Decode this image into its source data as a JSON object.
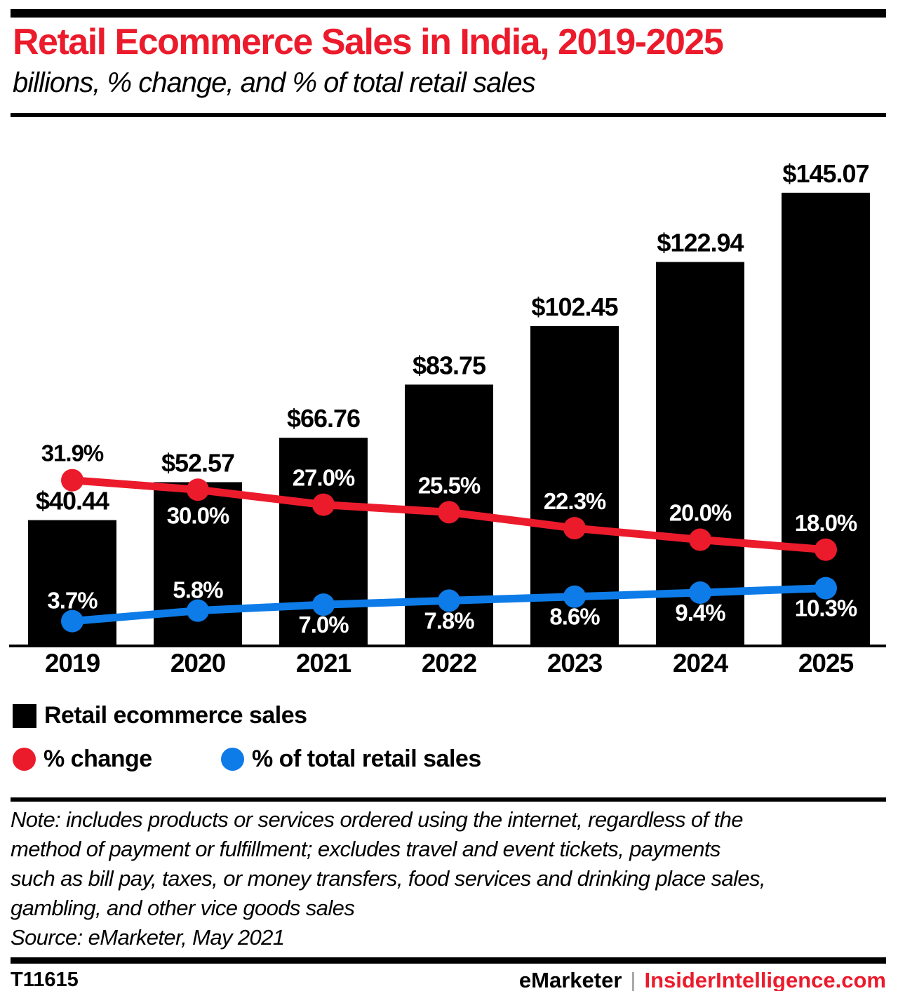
{
  "header": {
    "title": "Retail Ecommerce Sales in India, 2019-2025",
    "subtitle": "billions, % change, and % of total retail sales",
    "title_color": "#eb1b2c"
  },
  "chart_data": {
    "type": "bar",
    "subtype": "combo-bar-with-two-lines",
    "categories": [
      "2019",
      "2020",
      "2021",
      "2022",
      "2023",
      "2024",
      "2025"
    ],
    "series": [
      {
        "name": "Retail ecommerce sales",
        "type": "bar",
        "color": "#000000",
        "unit": "billions of US dollars",
        "values": [
          40.44,
          52.57,
          66.76,
          83.75,
          102.45,
          122.94,
          145.07
        ],
        "labels": [
          "$40.44",
          "$52.57",
          "$66.76",
          "$83.75",
          "$102.45",
          "$122.94",
          "$145.07"
        ],
        "label_color": "#000000"
      },
      {
        "name": "% change",
        "type": "line",
        "color": "#eb1b2c",
        "unit": "percent",
        "values": [
          31.9,
          30.0,
          27.0,
          25.5,
          22.3,
          20.0,
          18.0
        ],
        "labels": [
          "31.9%",
          "30.0%",
          "27.0%",
          "25.5%",
          "22.3%",
          "20.0%",
          "18.0%"
        ],
        "label_pos": [
          "above",
          "below",
          "above",
          "above",
          "above",
          "above",
          "above"
        ],
        "label_colors": [
          "#000000",
          "#ffffff",
          "#ffffff",
          "#ffffff",
          "#ffffff",
          "#ffffff",
          "#ffffff"
        ]
      },
      {
        "name": "% of total retail sales",
        "type": "line",
        "color": "#0d7ce8",
        "unit": "percent",
        "values": [
          3.7,
          5.8,
          7.0,
          7.8,
          8.6,
          9.4,
          10.3
        ],
        "labels": [
          "3.7%",
          "5.8%",
          "7.0%",
          "7.8%",
          "8.6%",
          "9.4%",
          "10.3%"
        ],
        "label_pos": [
          "above",
          "above",
          "below",
          "below",
          "below",
          "below",
          "below"
        ],
        "label_colors": [
          "#ffffff",
          "#ffffff",
          "#ffffff",
          "#ffffff",
          "#ffffff",
          "#ffffff",
          "#ffffff"
        ]
      }
    ],
    "grid": false,
    "value_axis_visible": false,
    "legend_position": "bottom-left"
  },
  "legend": {
    "items": [
      {
        "label": "Retail ecommerce sales",
        "swatch": "square",
        "color": "#000000"
      },
      {
        "label": "% change",
        "swatch": "circle",
        "color": "#eb1b2c"
      },
      {
        "label": "% of total retail sales",
        "swatch": "circle",
        "color": "#0d7ce8"
      }
    ]
  },
  "note": {
    "lines": [
      "Note: includes products or services ordered using the internet, regardless of the",
      "method of payment or fulfillment; excludes travel and event tickets, payments",
      "such as bill pay, taxes, or money transfers, food services and drinking place sales,",
      "gambling, and other vice goods sales",
      "Source: eMarketer, May 2021"
    ]
  },
  "footer": {
    "chart_id": "T11615",
    "brand": "eMarketer",
    "divider": "|",
    "site": "InsiderIntelligence.com"
  }
}
